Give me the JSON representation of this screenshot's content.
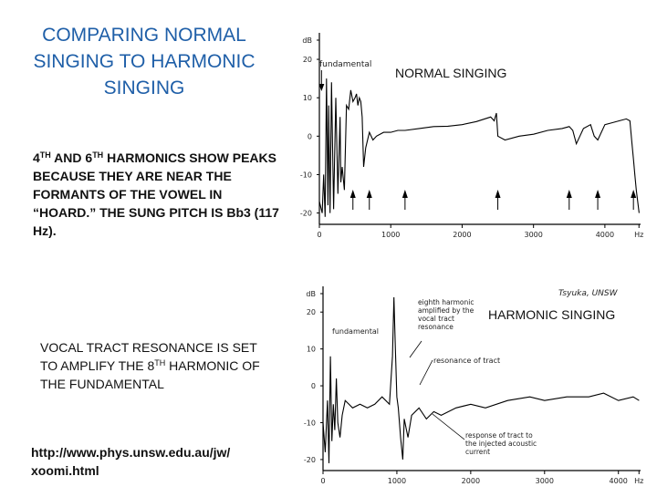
{
  "text": {
    "title": "COMPARING NORMAL SINGING TO HARMONIC SINGING",
    "p1_a": "4",
    "p1_sup1": "TH",
    "p1_b": " AND 6",
    "p1_sup2": "TH",
    "p1_c": " HARMONICS SHOW PEAKS BECAUSE THEY ARE NEAR THE FORMANTS OF THE VOWEL IN “HOARD.”  THE SUNG PITCH IS Bb3 (117 Hz).",
    "p2_a": "VOCAL TRACT RESONANCE IS SET TO AMPLIFY THE 8",
    "p2_sup": "TH",
    "p2_b": " HARMONIC OF THE FUNDAMENTAL",
    "url": "http://www.phys.unsw.edu.au/jw/ xoomi.html"
  },
  "chart_data": [
    {
      "type": "line",
      "title": "NORMAL SINGING",
      "x_unit": "Hz",
      "x_ticks": [
        "0",
        "1000",
        "2000",
        "3000",
        "4000",
        "Hz"
      ],
      "y_ticks": [
        "dB",
        "20",
        "10",
        "0",
        "-10",
        "-20"
      ],
      "xlim": [
        0,
        4500
      ],
      "ylim": [
        -22,
        25
      ],
      "annotations": [
        "fundamental"
      ],
      "arrow_down_at_hz": [
        30
      ],
      "arrows_up_at_hz": [
        470,
        700,
        1200,
        2500,
        3500,
        3900,
        4400
      ],
      "series": [
        {
          "x": [
            0,
            40,
            60,
            80,
            100,
            120,
            130,
            150,
            170,
            200,
            230,
            260,
            290,
            300,
            320,
            350,
            380,
            410,
            440,
            470,
            500,
            520,
            540,
            560,
            580,
            600,
            620,
            650,
            700,
            750,
            800,
            900,
            1000,
            1100,
            1200,
            1400,
            1600,
            1800,
            2000,
            2200,
            2400,
            2450,
            2480,
            2500,
            2600,
            2800,
            3000,
            3200,
            3400,
            3500,
            3550,
            3600,
            3650,
            3700,
            3800,
            3850,
            3900,
            4000,
            4100,
            4200,
            4300,
            4350,
            4380,
            4400,
            4420,
            4440,
            4480
          ],
          "y": [
            -17,
            -20,
            -10,
            -21,
            15,
            -18,
            8,
            -20,
            14,
            -19,
            10,
            -15,
            5,
            -12,
            -8,
            -14,
            8,
            7,
            12,
            9,
            10,
            11,
            8,
            10,
            9,
            5,
            -8,
            -3,
            1,
            -1,
            0,
            1,
            1,
            1.5,
            1.5,
            2,
            2.5,
            2.6,
            3,
            3.8,
            5,
            4,
            6,
            0,
            -1,
            0,
            0.5,
            1.5,
            2,
            2.5,
            1.5,
            -2,
            0,
            2,
            3,
            0,
            -1,
            3,
            3.5,
            4,
            4.5,
            4,
            -2,
            -6,
            -10,
            -14,
            -20
          ]
        }
      ]
    },
    {
      "type": "line",
      "title": "HARMONIC SINGING",
      "credit": "Tsyuka, UNSW",
      "x_unit": "Hz",
      "x_ticks": [
        "0",
        "1000",
        "2000",
        "3000",
        "4000",
        "Hz"
      ],
      "y_ticks": [
        "dB",
        "20",
        "10",
        "0",
        "-10",
        "-20"
      ],
      "xlim": [
        0,
        4300
      ],
      "ylim": [
        -22,
        25
      ],
      "annotations": [
        "fundamental",
        "eighth harmonic amplified by the vocal tract resonance",
        "resonance of tract",
        "response of tract to the injected acoustic current"
      ],
      "series": [
        {
          "x": [
            0,
            30,
            60,
            80,
            100,
            120,
            140,
            160,
            180,
            200,
            230,
            260,
            300,
            400,
            500,
            600,
            700,
            800,
            900,
            940,
            960,
            980,
            1000,
            1020,
            1050,
            1080,
            1100,
            1150,
            1200,
            1300,
            1400,
            1500,
            1600,
            1800,
            2000,
            2200,
            2500,
            2800,
            3000,
            3300,
            3600,
            3800,
            4000,
            4200,
            4280
          ],
          "y": [
            -10,
            -18,
            -4,
            -21,
            8,
            -15,
            -5,
            -12,
            2,
            -10,
            -14,
            -8,
            -4,
            -6,
            -5,
            -6,
            -5,
            -3,
            -5,
            8,
            24,
            10,
            -3,
            -6,
            -14,
            -20,
            -9,
            -14,
            -8,
            -6,
            -9,
            -7,
            -8,
            -6,
            -5,
            -6,
            -4,
            -3,
            -4,
            -3,
            -3,
            -2,
            -4,
            -3,
            -4
          ]
        }
      ]
    }
  ]
}
